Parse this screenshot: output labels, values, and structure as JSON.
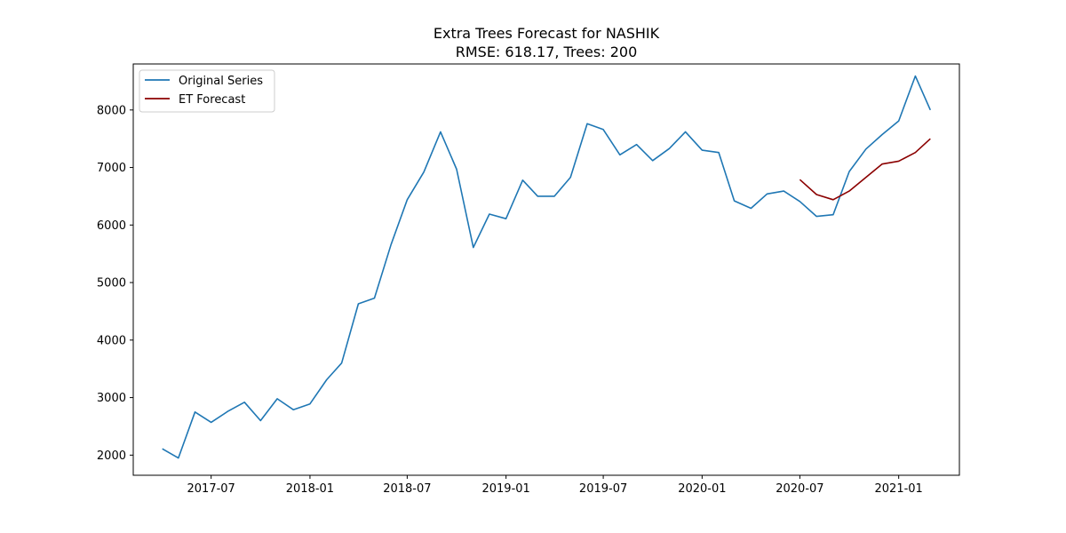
{
  "chart_data": {
    "type": "line",
    "title": "Extra Trees Forecast for NASHIK",
    "subtitle": "RMSE: 618.17, Trees: 200",
    "xlabel": "",
    "ylabel": "",
    "xlim": [
      "2017-02-06",
      "2021-04-24"
    ],
    "ylim": [
      1650,
      8800
    ],
    "x_ticks": [
      "2017-07-01",
      "2018-01-01",
      "2018-07-01",
      "2019-01-01",
      "2019-07-01",
      "2020-01-01",
      "2020-07-01",
      "2021-01-01"
    ],
    "x_tick_labels": [
      "2017-07",
      "2018-01",
      "2018-07",
      "2019-01",
      "2019-07",
      "2020-01",
      "2020-07",
      "2021-01"
    ],
    "y_ticks": [
      2000,
      3000,
      4000,
      5000,
      6000,
      7000,
      8000
    ],
    "y_tick_labels": [
      "2000",
      "3000",
      "4000",
      "5000",
      "6000",
      "7000",
      "8000"
    ],
    "grid": false,
    "legend_position": "top-left",
    "series": [
      {
        "name": "Original Series",
        "color": "#1f77b4",
        "x": [
          "2017-04-01",
          "2017-05-01",
          "2017-06-01",
          "2017-07-01",
          "2017-08-01",
          "2017-09-01",
          "2017-10-01",
          "2017-11-01",
          "2017-12-01",
          "2018-01-01",
          "2018-02-01",
          "2018-03-01",
          "2018-04-01",
          "2018-05-01",
          "2018-06-01",
          "2018-07-01",
          "2018-08-01",
          "2018-09-01",
          "2018-10-01",
          "2018-11-01",
          "2018-12-01",
          "2019-01-01",
          "2019-02-01",
          "2019-03-01",
          "2019-04-01",
          "2019-05-01",
          "2019-06-01",
          "2019-07-01",
          "2019-08-01",
          "2019-09-01",
          "2019-10-01",
          "2019-11-01",
          "2019-12-01",
          "2020-01-01",
          "2020-02-01",
          "2020-03-01",
          "2020-04-01",
          "2020-05-01",
          "2020-06-01",
          "2020-07-01",
          "2020-08-01",
          "2020-09-01",
          "2020-10-01",
          "2020-11-01",
          "2020-12-01",
          "2021-01-01",
          "2021-02-01",
          "2021-03-01"
        ],
        "values": [
          2110,
          1950,
          2750,
          2570,
          2760,
          2920,
          2600,
          2980,
          2790,
          2890,
          3310,
          3600,
          4630,
          4730,
          5660,
          6440,
          6920,
          7620,
          6970,
          5610,
          6190,
          6110,
          6780,
          6500,
          6500,
          6830,
          7760,
          7660,
          7220,
          7400,
          7120,
          7330,
          7620,
          7300,
          7260,
          6420,
          6290,
          6540,
          6590,
          6410,
          6150,
          6180,
          6930,
          7320,
          7570,
          7810,
          8590,
          8000
        ]
      },
      {
        "name": "ET Forecast",
        "color": "#8b0000",
        "x": [
          "2020-07-01",
          "2020-08-01",
          "2020-09-01",
          "2020-10-01",
          "2020-11-01",
          "2020-12-01",
          "2021-01-01",
          "2021-02-01",
          "2021-03-01"
        ],
        "values": [
          6790,
          6530,
          6440,
          6590,
          6830,
          7060,
          7110,
          7260,
          7500
        ]
      }
    ]
  }
}
